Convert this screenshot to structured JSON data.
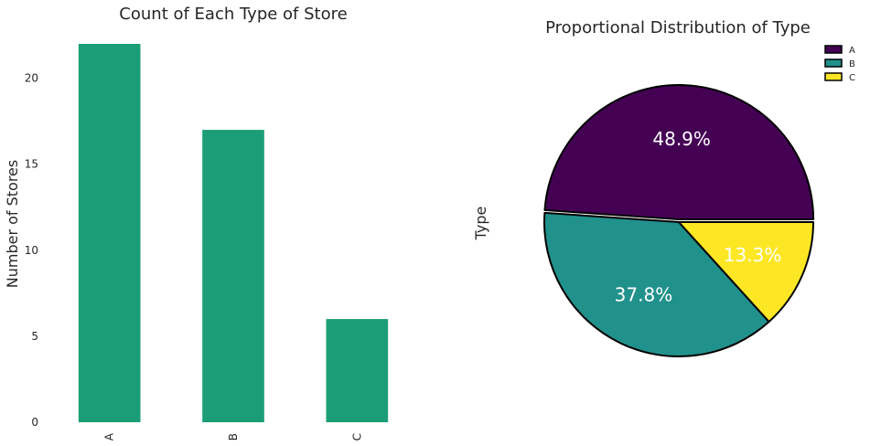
{
  "chart_data": [
    {
      "type": "bar",
      "title": "Count of Each Type of Store",
      "xlabel": "",
      "ylabel": "Number of Stores",
      "categories": [
        "A",
        "B",
        "C"
      ],
      "values": [
        22,
        17,
        6
      ],
      "ylim": [
        0,
        22
      ],
      "yticks": [
        "0",
        "5",
        "10",
        "15",
        "20"
      ],
      "color": "#1b9e77",
      "grid": false
    },
    {
      "type": "pie",
      "title": "Proportional Distribution of Type",
      "ylabel": "Type",
      "labels": [
        "A",
        "B",
        "C"
      ],
      "values": [
        48.9,
        37.8,
        13.3
      ],
      "pct_labels": [
        "48.9%",
        "37.8%",
        "13.3%"
      ],
      "colors": [
        "#440154",
        "#21918c",
        "#fde725"
      ],
      "legend": "top-right"
    }
  ]
}
